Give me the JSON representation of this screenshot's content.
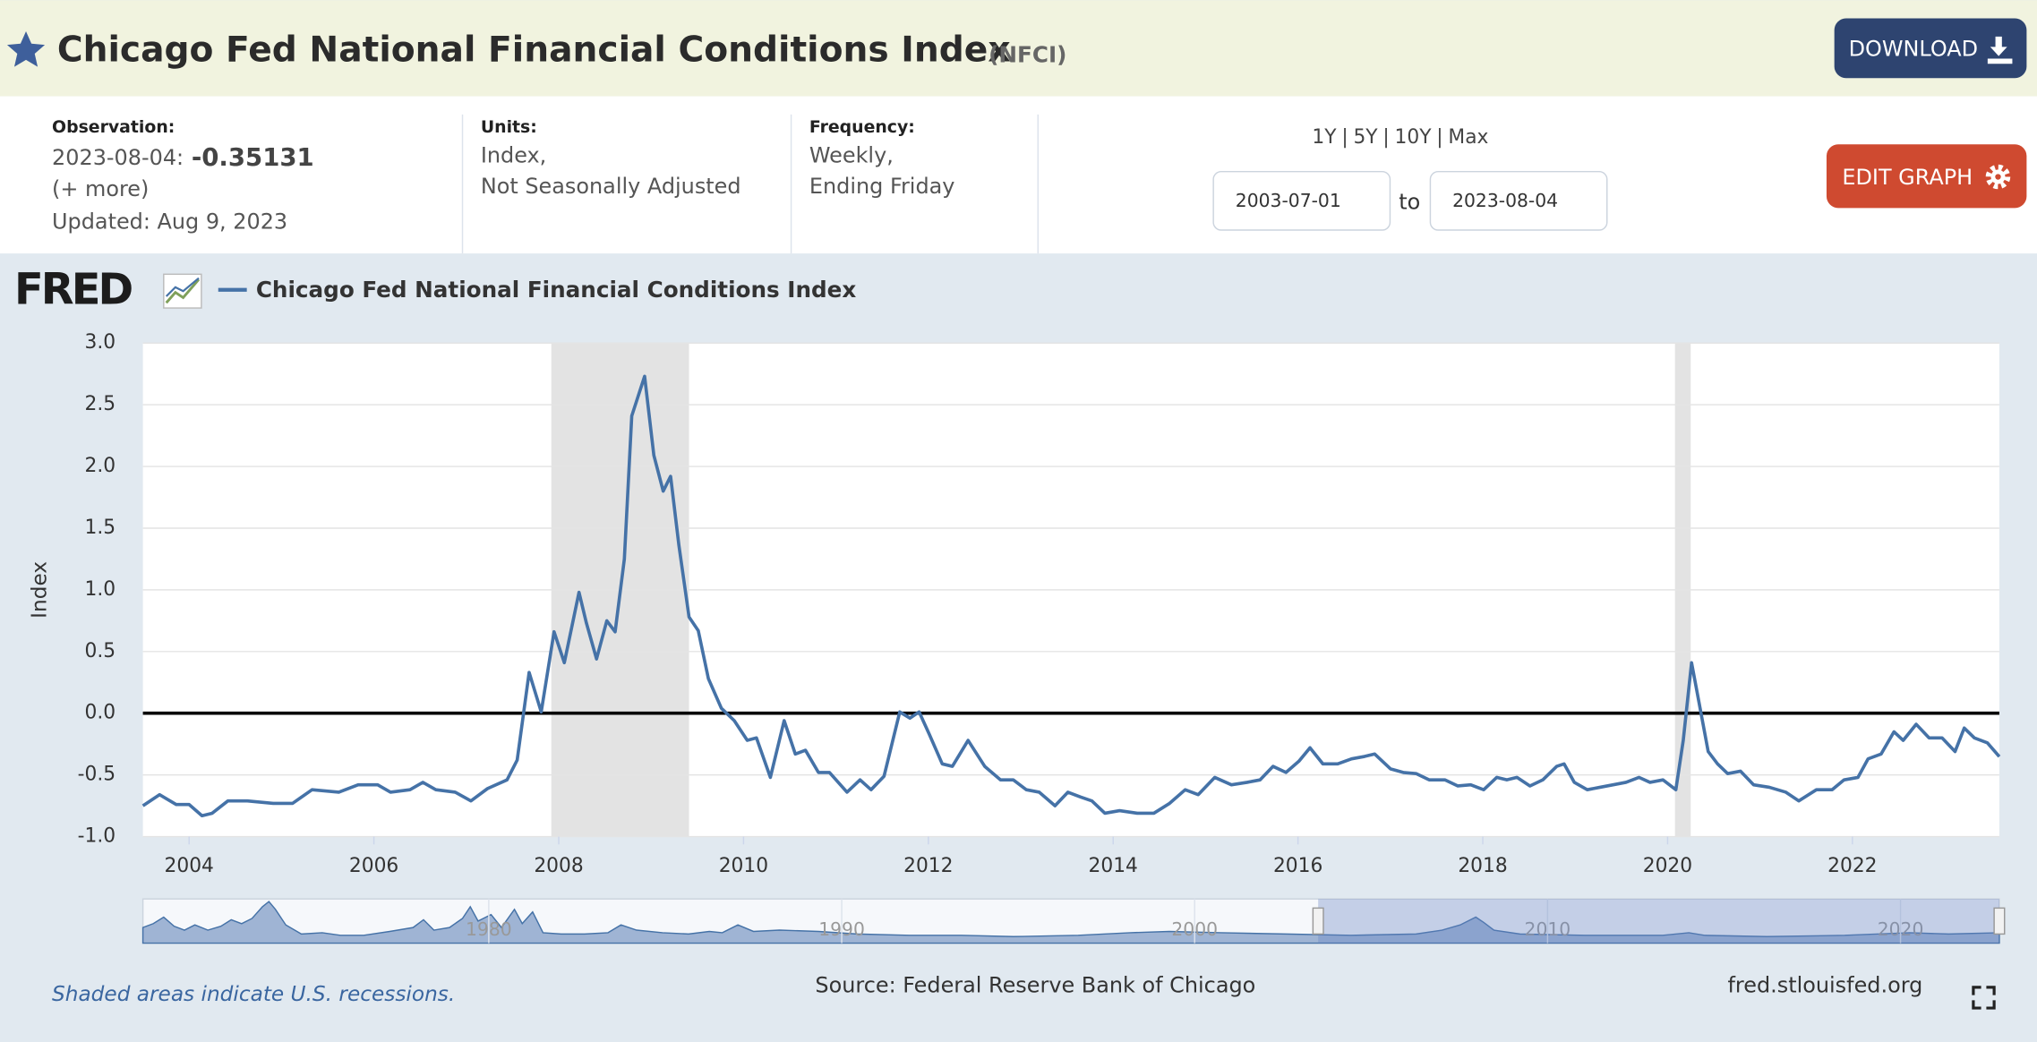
{
  "header": {
    "title": "Chicago Fed National Financial Conditions Index",
    "series_id": "(NFCI)",
    "download": "DOWNLOAD"
  },
  "info": {
    "observation_label": "Observation:",
    "observation_date": "2023-08-04:",
    "observation_value": "-0.35131",
    "more": "(+ more)",
    "updated": "Updated: Aug 9, 2023",
    "units_label": "Units:",
    "units_lines": [
      "Index,",
      "Not Seasonally Adjusted"
    ],
    "frequency_label": "Frequency:",
    "frequency_lines": [
      "Weekly,",
      "Ending Friday"
    ],
    "ranges": [
      "1Y",
      "5Y",
      "10Y",
      "Max"
    ],
    "range_separator": "|",
    "start_date": "2003-07-01",
    "to": "to",
    "end_date": "2023-08-04",
    "edit": "EDIT GRAPH"
  },
  "chart_data": {
    "type": "line",
    "logo": "FRED",
    "ylabel": "Index",
    "xlim": [
      2003.5,
      2023.59
    ],
    "xticks": [
      2004,
      2006,
      2008,
      2010,
      2012,
      2014,
      2016,
      2018,
      2020,
      2022
    ],
    "ylim": [
      -1,
      3
    ],
    "yticks": [
      {
        "value": -1,
        "label": "-1.0"
      },
      -0.5,
      {
        "value": 0,
        "label": "0.0"
      },
      0.5,
      {
        "value": 1,
        "label": "1.0"
      },
      1.5,
      {
        "value": 2,
        "label": "2.0"
      },
      2.5,
      {
        "value": 3,
        "label": "3.0"
      }
    ],
    "grid": true,
    "reference_line": 0,
    "recessions": [
      [
        2007.92,
        2009.41
      ],
      [
        2020.08,
        2020.25
      ]
    ],
    "series": [
      {
        "name": "Chicago Fed National Financial Conditions Index",
        "color": "#4572a7",
        "x": [
          2003.5,
          2003.68,
          2003.86,
          2004.0,
          2004.14,
          2004.25,
          2004.42,
          2004.63,
          2004.91,
          2005.12,
          2005.33,
          2005.62,
          2005.83,
          2006.04,
          2006.18,
          2006.39,
          2006.53,
          2006.67,
          2006.88,
          2007.05,
          2007.23,
          2007.44,
          2007.55,
          2007.68,
          2007.81,
          2007.95,
          2008.06,
          2008.22,
          2008.3,
          2008.41,
          2008.52,
          2008.61,
          2008.71,
          2008.79,
          2008.93,
          2009.03,
          2009.13,
          2009.21,
          2009.3,
          2009.41,
          2009.51,
          2009.62,
          2009.76,
          2009.9,
          2010.04,
          2010.14,
          2010.29,
          2010.44,
          2010.56,
          2010.67,
          2010.81,
          2010.93,
          2011.12,
          2011.26,
          2011.38,
          2011.52,
          2011.69,
          2011.8,
          2011.9,
          2012.01,
          2012.15,
          2012.26,
          2012.43,
          2012.61,
          2012.78,
          2012.92,
          2013.06,
          2013.2,
          2013.37,
          2013.51,
          2013.65,
          2013.77,
          2013.91,
          2014.07,
          2014.26,
          2014.44,
          2014.61,
          2014.78,
          2014.92,
          2015.1,
          2015.28,
          2015.45,
          2015.59,
          2015.73,
          2015.87,
          2016.01,
          2016.13,
          2016.27,
          2016.43,
          2016.58,
          2016.72,
          2016.83,
          2017.0,
          2017.14,
          2017.28,
          2017.42,
          2017.59,
          2017.73,
          2017.87,
          2018.01,
          2018.15,
          2018.26,
          2018.37,
          2018.51,
          2018.65,
          2018.8,
          2018.88,
          2018.99,
          2019.13,
          2019.27,
          2019.41,
          2019.55,
          2019.69,
          2019.81,
          2019.95,
          2020.09,
          2020.17,
          2020.26,
          2020.34,
          2020.44,
          2020.54,
          2020.65,
          2020.79,
          2020.93,
          2021.1,
          2021.28,
          2021.42,
          2021.61,
          2021.78,
          2021.91,
          2022.06,
          2022.17,
          2022.31,
          2022.45,
          2022.55,
          2022.69,
          2022.83,
          2022.97,
          2023.11,
          2023.21,
          2023.32,
          2023.46,
          2023.59
        ],
        "values": [
          -0.75,
          -0.66,
          -0.74,
          -0.74,
          -0.83,
          -0.81,
          -0.71,
          -0.71,
          -0.73,
          -0.73,
          -0.62,
          -0.64,
          -0.58,
          -0.58,
          -0.64,
          -0.62,
          -0.56,
          -0.62,
          -0.64,
          -0.71,
          -0.61,
          -0.54,
          -0.38,
          0.33,
          0.01,
          0.66,
          0.41,
          0.98,
          0.73,
          0.44,
          0.75,
          0.66,
          1.25,
          2.41,
          2.73,
          2.09,
          1.8,
          1.92,
          1.36,
          0.78,
          0.67,
          0.28,
          0.04,
          -0.06,
          -0.22,
          -0.2,
          -0.52,
          -0.06,
          -0.33,
          -0.3,
          -0.48,
          -0.48,
          -0.64,
          -0.54,
          -0.62,
          -0.51,
          0.01,
          -0.04,
          0.01,
          -0.17,
          -0.41,
          -0.43,
          -0.22,
          -0.43,
          -0.54,
          -0.54,
          -0.62,
          -0.64,
          -0.75,
          -0.64,
          -0.68,
          -0.71,
          -0.81,
          -0.79,
          -0.81,
          -0.81,
          -0.73,
          -0.62,
          -0.66,
          -0.52,
          -0.58,
          -0.56,
          -0.54,
          -0.43,
          -0.48,
          -0.39,
          -0.28,
          -0.41,
          -0.41,
          -0.37,
          -0.35,
          -0.33,
          -0.45,
          -0.48,
          -0.49,
          -0.54,
          -0.54,
          -0.59,
          -0.58,
          -0.62,
          -0.52,
          -0.54,
          -0.52,
          -0.59,
          -0.54,
          -0.43,
          -0.41,
          -0.56,
          -0.62,
          -0.6,
          -0.58,
          -0.56,
          -0.52,
          -0.56,
          -0.54,
          -0.62,
          -0.22,
          0.41,
          0.09,
          -0.31,
          -0.41,
          -0.49,
          -0.47,
          -0.58,
          -0.6,
          -0.64,
          -0.71,
          -0.62,
          -0.62,
          -0.54,
          -0.52,
          -0.37,
          -0.33,
          -0.15,
          -0.22,
          -0.09,
          -0.2,
          -0.2,
          -0.31,
          -0.12,
          -0.2,
          -0.24,
          -0.35131
        ]
      }
    ],
    "navigator": {
      "xlim": [
        1970.2,
        2022.8
      ],
      "xticks": [
        1980,
        1990,
        2000,
        2010,
        2020
      ]
    }
  },
  "footer": {
    "recession_note": "Shaded areas indicate U.S. recessions.",
    "source": "Source: Federal Reserve Bank of Chicago",
    "site": "fred.stlouisfed.org"
  }
}
